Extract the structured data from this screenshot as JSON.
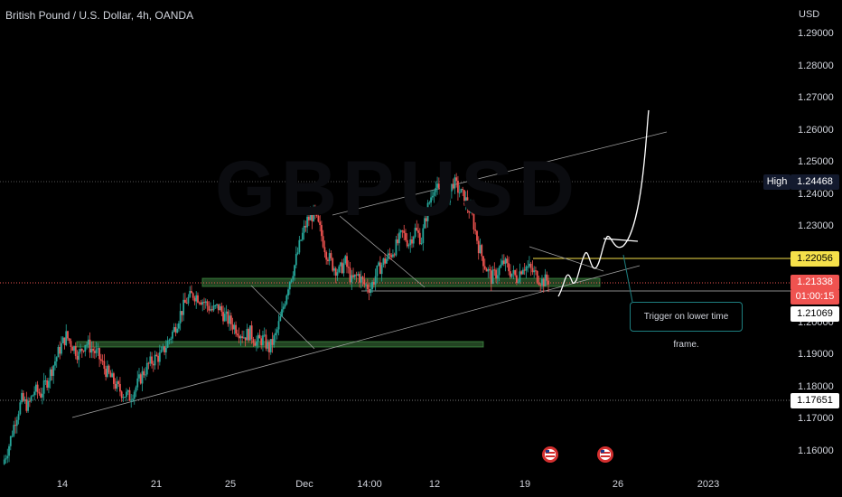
{
  "header": {
    "title": "British Pound / U.S. Dollar, 4h, OANDA",
    "watermark": "GBPUSD",
    "currency": "USD"
  },
  "price_labels": {
    "high_badge": "High",
    "high_value": "1.24468",
    "line_yellow": "1.22056",
    "current_price": "1.21338",
    "countdown": "01:00:15",
    "low_line": "1.21069",
    "dotted_line": "1.17651"
  },
  "annotation": {
    "text": "Trigger on lower time frame."
  },
  "colors": {
    "background": "#000000",
    "up_candle": "#26a69a",
    "down_candle": "#ef5350",
    "yellow_line": "#f5e04a",
    "zone_fill": "#2e5a2e",
    "trendline": "#9e9e9e",
    "callout_border": "#1e7f80"
  },
  "icons": [
    "us-flag-event-icon",
    "us-flag-event-icon"
  ],
  "chart_data": {
    "type": "candlestick",
    "title": "British Pound / U.S. Dollar, 4h, OANDA",
    "ylim": [
      1.155,
      1.295
    ],
    "y_ticks": [
      "1.29000",
      "1.28000",
      "1.27000",
      "1.26000",
      "1.25000",
      "1.24000",
      "1.23000",
      "1.22000",
      "1.21000",
      "1.20000",
      "1.19000",
      "1.18000",
      "1.17000",
      "1.16000"
    ],
    "x_ticks": [
      "14",
      "21",
      "25",
      "Dec",
      "14:00",
      "12",
      "19",
      "26",
      "2023"
    ],
    "close_path": [
      1.156,
      1.162,
      1.17,
      1.176,
      1.174,
      1.179,
      1.178,
      1.182,
      1.187,
      1.192,
      1.196,
      1.193,
      1.19,
      1.194,
      1.192,
      1.19,
      1.186,
      1.183,
      1.18,
      1.178,
      1.177,
      1.18,
      1.184,
      1.187,
      1.189,
      1.19,
      1.194,
      1.198,
      1.203,
      1.207,
      1.209,
      1.208,
      1.206,
      1.204,
      1.205,
      1.202,
      1.2,
      1.198,
      1.196,
      1.197,
      1.194,
      1.195,
      1.192,
      1.196,
      1.203,
      1.212,
      1.218,
      1.226,
      1.232,
      1.234,
      1.229,
      1.222,
      1.218,
      1.216,
      1.219,
      1.213,
      1.215,
      1.212,
      1.211,
      1.216,
      1.219,
      1.221,
      1.224,
      1.228,
      1.225,
      1.229,
      1.226,
      1.236,
      1.243,
      1.24,
      1.238,
      1.244,
      1.241,
      1.238,
      1.233,
      1.224,
      1.218,
      1.214,
      1.216,
      1.219,
      1.216,
      1.214,
      1.218,
      1.217,
      1.215,
      1.213,
      1.2134
    ]
  }
}
